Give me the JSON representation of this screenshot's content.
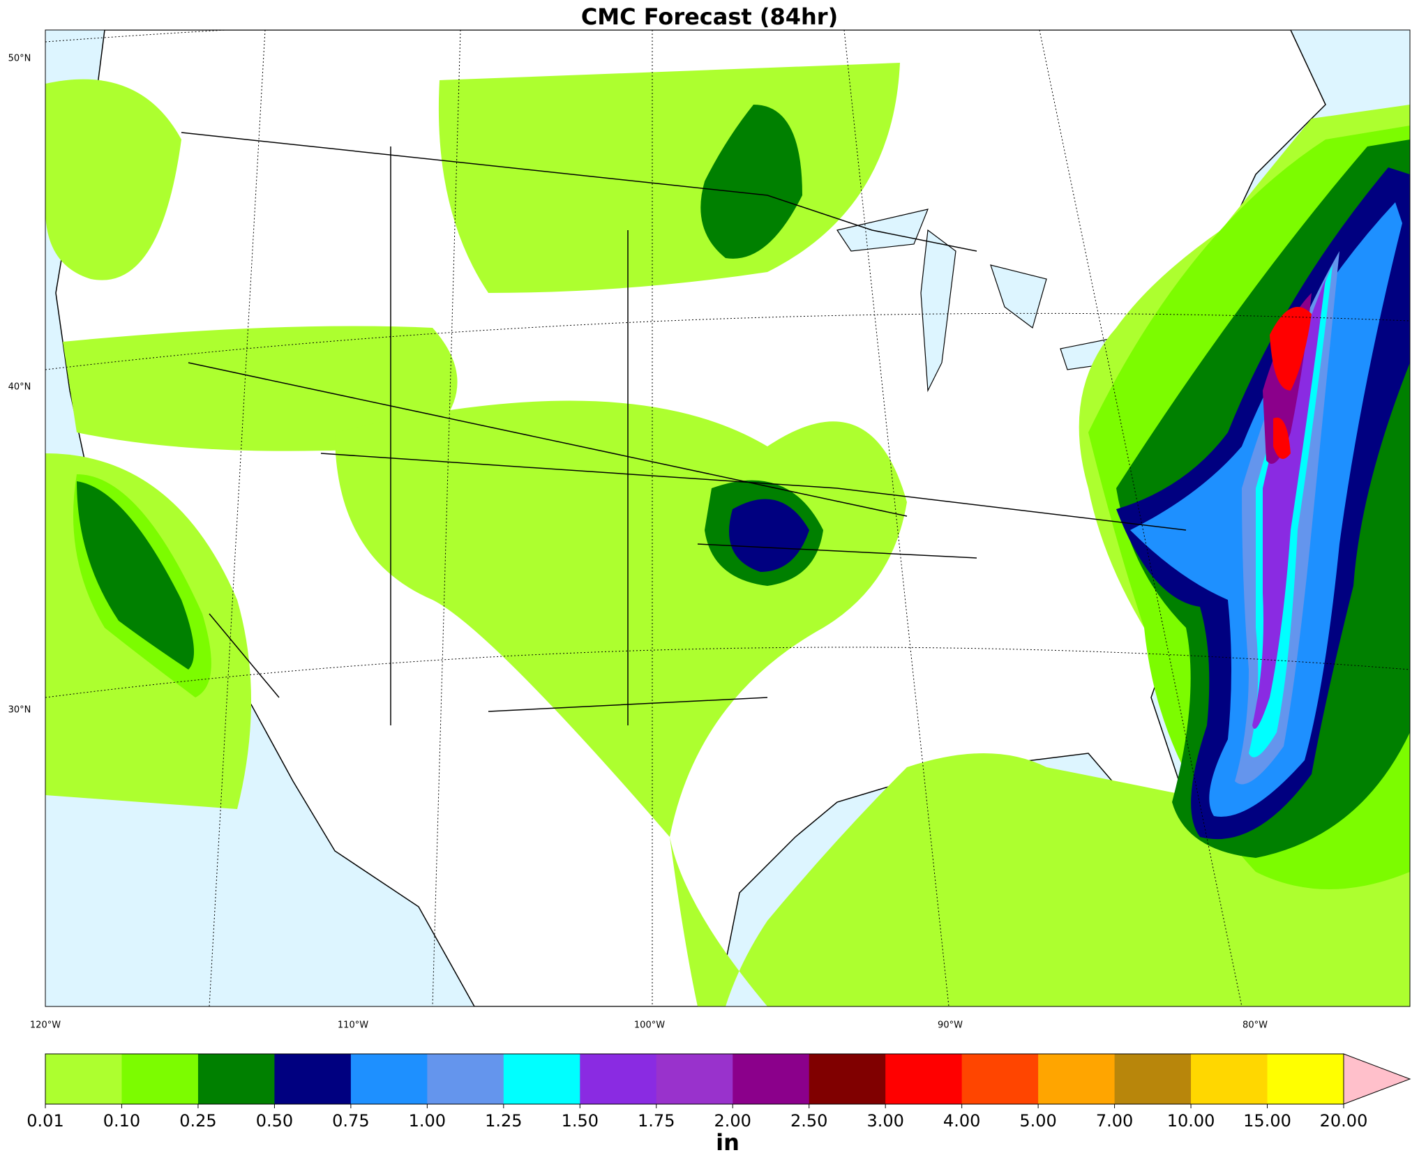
{
  "header": {
    "title": "CMC Forecast (84hr)"
  },
  "axes": {
    "lat_labels": [
      "50°N",
      "40°N",
      "30°N"
    ],
    "lon_labels": [
      "120°W",
      "110°W",
      "100°W",
      "90°W",
      "80°W"
    ]
  },
  "colorbar": {
    "labels": [
      "0.01",
      "0.10",
      "0.25",
      "0.50",
      "0.75",
      "1.00",
      "1.25",
      "1.50",
      "1.75",
      "2.00",
      "2.50",
      "3.00",
      "4.00",
      "5.00",
      "7.00",
      "10.00",
      "15.00",
      "20.00"
    ],
    "colors": [
      "#adff2f",
      "#7cfc00",
      "#008000",
      "#000080",
      "#1e90ff",
      "#6495ed",
      "#00ffff",
      "#8a2be2",
      "#9932cc",
      "#8b008b",
      "#800000",
      "#ff0000",
      "#ff4500",
      "#ffa500",
      "#b8860b",
      "#ffd700",
      "#ffff00"
    ],
    "extend_color": "#ffc0cb",
    "unit": "in"
  }
}
